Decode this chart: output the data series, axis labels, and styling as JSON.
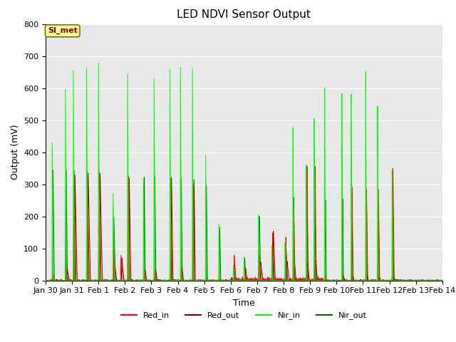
{
  "title": "LED NDVI Sensor Output",
  "xlabel": "Time",
  "ylabel": "Output (mV)",
  "ylim": [
    0,
    800
  ],
  "y_ticks": [
    0,
    100,
    200,
    300,
    400,
    500,
    600,
    700,
    800
  ],
  "x_tick_labels": [
    "Jan 30",
    "Jan 31",
    "Feb 1",
    "Feb 2",
    "Feb 3",
    "Feb 4",
    "Feb 5",
    "Feb 6",
    "Feb 7",
    "Feb 8",
    "Feb 9",
    "Feb 10",
    "Feb 11",
    "Feb 12",
    "Feb 13",
    "Feb 14"
  ],
  "colors": {
    "Red_in": "#ff0000",
    "Red_out": "#800000",
    "Nir_in": "#00ff00",
    "Nir_out": "#006400"
  },
  "legend_label": "SI_met",
  "background_color": "#e8e8e8",
  "fig_background": "#ffffff",
  "gridcolor": "#ffffff",
  "title_fontsize": 11,
  "axis_fontsize": 9,
  "tick_fontsize": 8
}
